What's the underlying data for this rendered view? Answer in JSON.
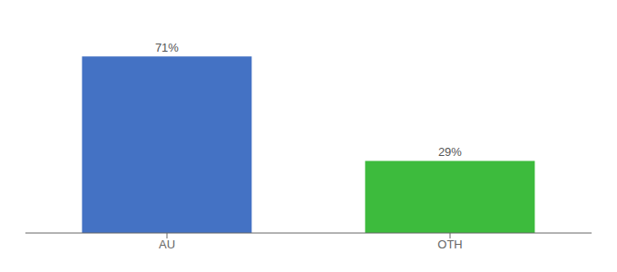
{
  "chart_data": {
    "type": "bar",
    "categories": [
      "AU",
      "OTH"
    ],
    "values": [
      71,
      29
    ],
    "value_labels": [
      "71%",
      "29%"
    ],
    "colors": [
      "#4472c4",
      "#3dbb3d"
    ],
    "ylim": [
      0,
      82
    ],
    "data_labels": true,
    "tick_labels": "x"
  }
}
